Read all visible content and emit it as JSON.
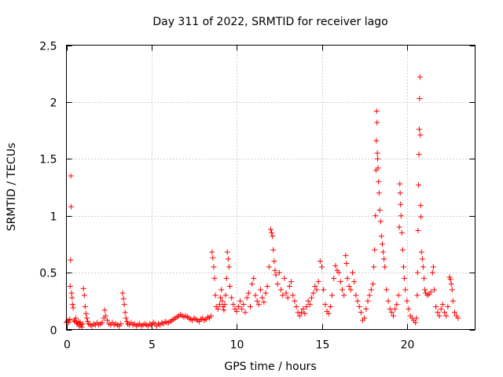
{
  "chart_data": {
    "type": "scatter",
    "title": "Day 311 of 2022, SRMTID for receiver lago",
    "xlabel": "GPS time / hours",
    "ylabel": "SRMTID / TECUs",
    "xlim": [
      0,
      24
    ],
    "ylim": [
      0,
      2.5
    ],
    "grid": true,
    "marker": "+",
    "color": "#ff0000",
    "xticks": [
      0,
      5,
      10,
      15,
      20
    ],
    "xtick_labels": [
      "0",
      "5",
      "10",
      "15",
      "20"
    ],
    "yticks": [
      0,
      0.5,
      1,
      1.5,
      2,
      2.5
    ],
    "ytick_labels": [
      "0",
      "0.5",
      "1",
      "1.5",
      "2",
      "2.5"
    ],
    "series": [
      {
        "name": "SRMTID",
        "points": [
          [
            0.0,
            0.06
          ],
          [
            0.05,
            0.07
          ],
          [
            0.1,
            0.08
          ],
          [
            0.15,
            0.06
          ],
          [
            0.2,
            0.09
          ],
          [
            0.22,
            0.38
          ],
          [
            0.24,
            0.61
          ],
          [
            0.26,
            1.35
          ],
          [
            0.28,
            1.08
          ],
          [
            0.3,
            0.32
          ],
          [
            0.33,
            0.28
          ],
          [
            0.36,
            0.22
          ],
          [
            0.4,
            0.19
          ],
          [
            0.45,
            0.08
          ],
          [
            0.5,
            0.07
          ],
          [
            0.55,
            0.1
          ],
          [
            0.6,
            0.06
          ],
          [
            0.65,
            0.05
          ],
          [
            0.7,
            0.07
          ],
          [
            0.75,
            0.03
          ],
          [
            0.8,
            0.06
          ],
          [
            0.85,
            0.04
          ],
          [
            0.9,
            0.02
          ],
          [
            0.95,
            0.05
          ],
          [
            1.0,
            0.36
          ],
          [
            1.05,
            0.3
          ],
          [
            1.1,
            0.2
          ],
          [
            1.15,
            0.14
          ],
          [
            1.2,
            0.1
          ],
          [
            1.25,
            0.07
          ],
          [
            1.3,
            0.05
          ],
          [
            1.4,
            0.04
          ],
          [
            1.5,
            0.03
          ],
          [
            1.6,
            0.05
          ],
          [
            1.7,
            0.04
          ],
          [
            1.8,
            0.06
          ],
          [
            1.9,
            0.04
          ],
          [
            2.0,
            0.05
          ],
          [
            2.1,
            0.06
          ],
          [
            2.2,
            0.1
          ],
          [
            2.25,
            0.17
          ],
          [
            2.3,
            0.12
          ],
          [
            2.4,
            0.08
          ],
          [
            2.5,
            0.05
          ],
          [
            2.6,
            0.04
          ],
          [
            2.7,
            0.06
          ],
          [
            2.8,
            0.04
          ],
          [
            2.9,
            0.05
          ],
          [
            3.0,
            0.04
          ],
          [
            3.1,
            0.03
          ],
          [
            3.2,
            0.05
          ],
          [
            3.3,
            0.32
          ],
          [
            3.35,
            0.27
          ],
          [
            3.4,
            0.22
          ],
          [
            3.45,
            0.15
          ],
          [
            3.5,
            0.1
          ],
          [
            3.55,
            0.07
          ],
          [
            3.6,
            0.05
          ],
          [
            3.7,
            0.04
          ],
          [
            3.8,
            0.06
          ],
          [
            3.9,
            0.04
          ],
          [
            4.0,
            0.05
          ],
          [
            4.1,
            0.03
          ],
          [
            4.2,
            0.04
          ],
          [
            4.3,
            0.05
          ],
          [
            4.4,
            0.03
          ],
          [
            4.5,
            0.04
          ],
          [
            4.6,
            0.05
          ],
          [
            4.7,
            0.04
          ],
          [
            4.8,
            0.03
          ],
          [
            4.9,
            0.05
          ],
          [
            5.0,
            0.04
          ],
          [
            5.1,
            0.06
          ],
          [
            5.2,
            0.05
          ],
          [
            5.3,
            0.03
          ],
          [
            5.4,
            0.05
          ],
          [
            5.5,
            0.04
          ],
          [
            5.6,
            0.06
          ],
          [
            5.7,
            0.05
          ],
          [
            5.8,
            0.07
          ],
          [
            5.9,
            0.06
          ],
          [
            6.0,
            0.06
          ],
          [
            6.1,
            0.07
          ],
          [
            6.2,
            0.08
          ],
          [
            6.3,
            0.09
          ],
          [
            6.4,
            0.1
          ],
          [
            6.5,
            0.11
          ],
          [
            6.6,
            0.12
          ],
          [
            6.7,
            0.13
          ],
          [
            6.8,
            0.12
          ],
          [
            6.9,
            0.11
          ],
          [
            7.0,
            0.12
          ],
          [
            7.1,
            0.11
          ],
          [
            7.2,
            0.1
          ],
          [
            7.3,
            0.09
          ],
          [
            7.4,
            0.08
          ],
          [
            7.5,
            0.1
          ],
          [
            7.6,
            0.09
          ],
          [
            7.7,
            0.08
          ],
          [
            7.8,
            0.07
          ],
          [
            7.9,
            0.09
          ],
          [
            8.0,
            0.1
          ],
          [
            8.1,
            0.08
          ],
          [
            8.2,
            0.09
          ],
          [
            8.3,
            0.11
          ],
          [
            8.4,
            0.1
          ],
          [
            8.5,
            0.12
          ],
          [
            8.55,
            0.68
          ],
          [
            8.6,
            0.63
          ],
          [
            8.65,
            0.55
          ],
          [
            8.7,
            0.45
          ],
          [
            8.75,
            0.3
          ],
          [
            8.8,
            0.2
          ],
          [
            8.9,
            0.18
          ],
          [
            9.0,
            0.22
          ],
          [
            9.05,
            0.28
          ],
          [
            9.1,
            0.35
          ],
          [
            9.15,
            0.25
          ],
          [
            9.2,
            0.2
          ],
          [
            9.25,
            0.17
          ],
          [
            9.3,
            0.22
          ],
          [
            9.35,
            0.3
          ],
          [
            9.4,
            0.45
          ],
          [
            9.45,
            0.68
          ],
          [
            9.5,
            0.62
          ],
          [
            9.55,
            0.55
          ],
          [
            9.6,
            0.38
          ],
          [
            9.7,
            0.28
          ],
          [
            9.8,
            0.22
          ],
          [
            9.9,
            0.18
          ],
          [
            10.0,
            0.16
          ],
          [
            10.1,
            0.2
          ],
          [
            10.2,
            0.25
          ],
          [
            10.3,
            0.18
          ],
          [
            10.4,
            0.22
          ],
          [
            10.5,
            0.15
          ],
          [
            10.6,
            0.28
          ],
          [
            10.7,
            0.32
          ],
          [
            10.8,
            0.2
          ],
          [
            10.9,
            0.4
          ],
          [
            11.0,
            0.45
          ],
          [
            11.1,
            0.3
          ],
          [
            11.2,
            0.25
          ],
          [
            11.3,
            0.22
          ],
          [
            11.4,
            0.35
          ],
          [
            11.5,
            0.28
          ],
          [
            11.6,
            0.24
          ],
          [
            11.7,
            0.32
          ],
          [
            11.8,
            0.38
          ],
          [
            11.9,
            0.55
          ],
          [
            12.0,
            0.88
          ],
          [
            12.05,
            0.85
          ],
          [
            12.1,
            0.82
          ],
          [
            12.15,
            0.7
          ],
          [
            12.2,
            0.6
          ],
          [
            12.25,
            0.52
          ],
          [
            12.3,
            0.48
          ],
          [
            12.4,
            0.4
          ],
          [
            12.5,
            0.5
          ],
          [
            12.6,
            0.35
          ],
          [
            12.7,
            0.3
          ],
          [
            12.8,
            0.45
          ],
          [
            12.9,
            0.32
          ],
          [
            13.0,
            0.28
          ],
          [
            13.1,
            0.38
          ],
          [
            13.2,
            0.42
          ],
          [
            13.3,
            0.3
          ],
          [
            13.4,
            0.25
          ],
          [
            13.5,
            0.2
          ],
          [
            13.6,
            0.15
          ],
          [
            13.7,
            0.12
          ],
          [
            13.8,
            0.15
          ],
          [
            13.9,
            0.18
          ],
          [
            14.0,
            0.14
          ],
          [
            14.1,
            0.2
          ],
          [
            14.2,
            0.25
          ],
          [
            14.3,
            0.22
          ],
          [
            14.4,
            0.28
          ],
          [
            14.5,
            0.32
          ],
          [
            14.6,
            0.38
          ],
          [
            14.7,
            0.35
          ],
          [
            14.8,
            0.42
          ],
          [
            14.9,
            0.6
          ],
          [
            15.0,
            0.55
          ],
          [
            15.1,
            0.35
          ],
          [
            15.2,
            0.22
          ],
          [
            15.3,
            0.16
          ],
          [
            15.4,
            0.14
          ],
          [
            15.5,
            0.2
          ],
          [
            15.6,
            0.3
          ],
          [
            15.7,
            0.45
          ],
          [
            15.8,
            0.56
          ],
          [
            15.9,
            0.52
          ],
          [
            16.0,
            0.5
          ],
          [
            16.1,
            0.42
          ],
          [
            16.2,
            0.35
          ],
          [
            16.3,
            0.3
          ],
          [
            16.4,
            0.65
          ],
          [
            16.45,
            0.58
          ],
          [
            16.5,
            0.45
          ],
          [
            16.6,
            0.38
          ],
          [
            16.7,
            0.35
          ],
          [
            16.8,
            0.5
          ],
          [
            16.9,
            0.42
          ],
          [
            17.0,
            0.3
          ],
          [
            17.1,
            0.25
          ],
          [
            17.2,
            0.2
          ],
          [
            17.3,
            0.15
          ],
          [
            17.4,
            0.08
          ],
          [
            17.5,
            0.1
          ],
          [
            17.6,
            0.18
          ],
          [
            17.7,
            0.25
          ],
          [
            17.8,
            0.3
          ],
          [
            17.9,
            0.35
          ],
          [
            18.0,
            0.4
          ],
          [
            18.05,
            0.55
          ],
          [
            18.1,
            0.7
          ],
          [
            18.15,
            1.0
          ],
          [
            18.18,
            1.4
          ],
          [
            18.2,
            1.66
          ],
          [
            18.22,
            1.92
          ],
          [
            18.24,
            1.82
          ],
          [
            18.26,
            1.55
          ],
          [
            18.28,
            1.5
          ],
          [
            18.3,
            1.42
          ],
          [
            18.33,
            1.3
          ],
          [
            18.36,
            1.2
          ],
          [
            18.4,
            1.05
          ],
          [
            18.45,
            0.95
          ],
          [
            18.5,
            0.82
          ],
          [
            18.55,
            0.75
          ],
          [
            18.6,
            0.68
          ],
          [
            18.65,
            0.62
          ],
          [
            18.7,
            0.55
          ],
          [
            18.8,
            0.35
          ],
          [
            18.9,
            0.25
          ],
          [
            19.0,
            0.18
          ],
          [
            19.1,
            0.15
          ],
          [
            19.2,
            0.12
          ],
          [
            19.3,
            0.18
          ],
          [
            19.4,
            0.22
          ],
          [
            19.5,
            0.3
          ],
          [
            19.55,
            0.9
          ],
          [
            19.58,
            1.28
          ],
          [
            19.6,
            1.2
          ],
          [
            19.62,
            1.1
          ],
          [
            19.65,
            1.0
          ],
          [
            19.7,
            0.85
          ],
          [
            19.75,
            0.7
          ],
          [
            19.8,
            0.55
          ],
          [
            19.85,
            0.45
          ],
          [
            19.9,
            0.35
          ],
          [
            20.0,
            0.25
          ],
          [
            20.1,
            0.18
          ],
          [
            20.2,
            0.12
          ],
          [
            20.3,
            0.1
          ],
          [
            20.4,
            0.08
          ],
          [
            20.5,
            0.06
          ],
          [
            20.55,
            0.1
          ],
          [
            20.6,
            0.3
          ],
          [
            20.62,
            0.5
          ],
          [
            20.65,
            0.87
          ],
          [
            20.68,
            1.27
          ],
          [
            20.7,
            1.54
          ],
          [
            20.72,
            1.76
          ],
          [
            20.74,
            2.03
          ],
          [
            20.76,
            2.22
          ],
          [
            20.78,
            1.71
          ],
          [
            20.8,
            1.09
          ],
          [
            20.82,
            0.99
          ],
          [
            20.85,
            0.68
          ],
          [
            20.9,
            0.62
          ],
          [
            20.95,
            0.55
          ],
          [
            21.0,
            0.45
          ],
          [
            21.05,
            0.35
          ],
          [
            21.1,
            0.32
          ],
          [
            21.2,
            0.3
          ],
          [
            21.3,
            0.31
          ],
          [
            21.4,
            0.33
          ],
          [
            21.5,
            0.5
          ],
          [
            21.55,
            0.55
          ],
          [
            21.6,
            0.35
          ],
          [
            21.7,
            0.2
          ],
          [
            21.8,
            0.15
          ],
          [
            21.9,
            0.12
          ],
          [
            22.0,
            0.18
          ],
          [
            22.1,
            0.22
          ],
          [
            22.2,
            0.15
          ],
          [
            22.3,
            0.12
          ],
          [
            22.4,
            0.2
          ],
          [
            22.5,
            0.46
          ],
          [
            22.55,
            0.44
          ],
          [
            22.6,
            0.4
          ],
          [
            22.65,
            0.35
          ],
          [
            22.7,
            0.25
          ],
          [
            22.8,
            0.15
          ],
          [
            22.9,
            0.12
          ],
          [
            23.0,
            0.1
          ]
        ]
      }
    ]
  }
}
